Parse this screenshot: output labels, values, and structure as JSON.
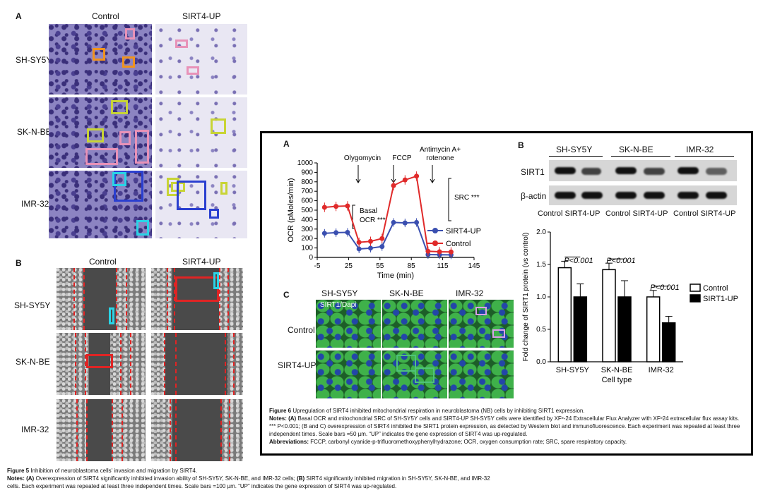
{
  "fig5": {
    "panel_a": "A",
    "panel_b": "B",
    "col_control": "Control",
    "col_sirt4": "SIRT4-UP",
    "rows": [
      "SH-SY5Y",
      "SK-N-BE",
      "IMR-32"
    ],
    "b_col_control": "Control",
    "b_col_sirt4": "SIRT4-UP",
    "b_rows": [
      "SH-SY5Y",
      "SK-N-BE",
      "IMR-32"
    ],
    "caption_title_bold": "Figure 5",
    "caption_title": " Inhibition of neuroblastoma cells' invasion and migration by SIRT4.",
    "caption_notes_bold": "Notes: (A)",
    "caption_notes_1": " Overexpression of SIRT4 significantly inhibited invasion ability of SH-SY5Y, SK-N-BE, and IMR-32 cells; ",
    "caption_notes_b": "(B)",
    "caption_notes_2": " SIRT4 significantly inhibited migration in SH-SY5Y, SK-N-BE, and IMR-32 cells. Each experiment was repeated at least three independent times. Scale bars =100 µm.  “UP” indicates the gene expression of SIRT4 was up-regulated."
  },
  "fig6": {
    "panel_a": "A",
    "panel_b": "B",
    "panel_c": "C",
    "ocr_chart": {
      "annotations": {
        "oligomycin": "Olygomycin",
        "fccp": "FCCP",
        "antimycin_1": "Antimycin A+",
        "antimycin_2": "rotenone",
        "basal_1": "Basal",
        "basal_2": "OCR ***",
        "src": "SRC ***"
      }
    },
    "blot": {
      "groups": [
        "SH-SY5Y",
        "SK-N-BE",
        "IMR-32"
      ],
      "rows": [
        "SIRT1",
        "β-actin"
      ],
      "lanes": [
        "Control SIRT4-UP",
        "Control SIRT4-UP",
        "Control SIRT4-UP"
      ]
    },
    "if": {
      "cols": [
        "SH-SY5Y",
        "SK-N-BE",
        "IMR-32"
      ],
      "rows": [
        "Control",
        "SIRT4-UP"
      ],
      "stain_label": "SIRT1/Dapi"
    },
    "bar_chart": {
      "pvalues": [
        "P<0.001",
        "P<0.001",
        "P<0.001"
      ]
    },
    "caption_title_bold": "Figure 6",
    "caption_title": " Upregulation of SIRT4 inhibited mitochondrial respiration in neuroblastoma (NB) cells by inhibiting SIRT1 expression.",
    "caption_notes_bold": "Notes: (A)",
    "caption_notes": " Basal OCR and mitochondrial SRC of SH-SY5Y cells and SIRT4-UP SH-SY5Y cells were identified by XFᵉ-24 Extracellular Flux Analyzer with XFᵉ24 extracellular flux assay kits. *** P<0.001; (B and C) overexpression of SIRT4 inhibited the SIRT1 protein expression, as detected by Western blot and immunofluorescence. Each experiment was repeated at least three independent times. Scale bars =50 µm. “UP” indicates the gene expression of SIRT4 was up-regulated.",
    "caption_abbrev_bold": "Abbreviations:",
    "caption_abbrev": " FCCP, carbonyl cyanide-p-trifluoromethoxyphenylhydrazone; OCR, oxygen consumption rate; SRC, spare respiratory capacity."
  },
  "chart_data": [
    {
      "type": "line",
      "xlabel": "Time (min)",
      "ylabel": "OCR (pMoles/min)",
      "xlim": [
        -5,
        145
      ],
      "ylim": [
        0,
        1000
      ],
      "xticks": [
        -5,
        25,
        55,
        85,
        115,
        145
      ],
      "yticks": [
        0,
        100,
        200,
        300,
        400,
        500,
        600,
        700,
        800,
        900,
        1000
      ],
      "legend_position": "right",
      "series": [
        {
          "name": "SIRT4-UP",
          "color": "#3a4fb0",
          "x": [
            2,
            13,
            24,
            35,
            46,
            57,
            68,
            79,
            90,
            101,
            112,
            123
          ],
          "y": [
            255,
            262,
            265,
            90,
            98,
            115,
            370,
            365,
            370,
            30,
            28,
            27
          ]
        },
        {
          "name": "Control",
          "color": "#e02a2a",
          "x": [
            2,
            13,
            24,
            35,
            46,
            57,
            68,
            79,
            90,
            101,
            112,
            123
          ],
          "y": [
            530,
            540,
            545,
            160,
            170,
            200,
            760,
            820,
            860,
            65,
            60,
            58
          ]
        }
      ]
    },
    {
      "type": "bar",
      "xlabel": "Cell type",
      "ylabel": "Fold change of SIRT1 protein (vs control)",
      "ylim": [
        0,
        2.0
      ],
      "yticks": [
        0.0,
        0.5,
        1.0,
        1.5,
        2.0
      ],
      "categories": [
        "SH-SY5Y",
        "SK-N-BE",
        "IMR-32"
      ],
      "legend_position": "right",
      "series": [
        {
          "name": "Control",
          "color": "#ffffff",
          "values": [
            1.45,
            1.42,
            1.0
          ],
          "errors": [
            0.1,
            0.1,
            0.1
          ]
        },
        {
          "name": "SIRT1-UP",
          "color": "#000000",
          "values": [
            1.0,
            1.0,
            0.6
          ],
          "errors": [
            0.2,
            0.25,
            0.1
          ]
        }
      ]
    }
  ]
}
